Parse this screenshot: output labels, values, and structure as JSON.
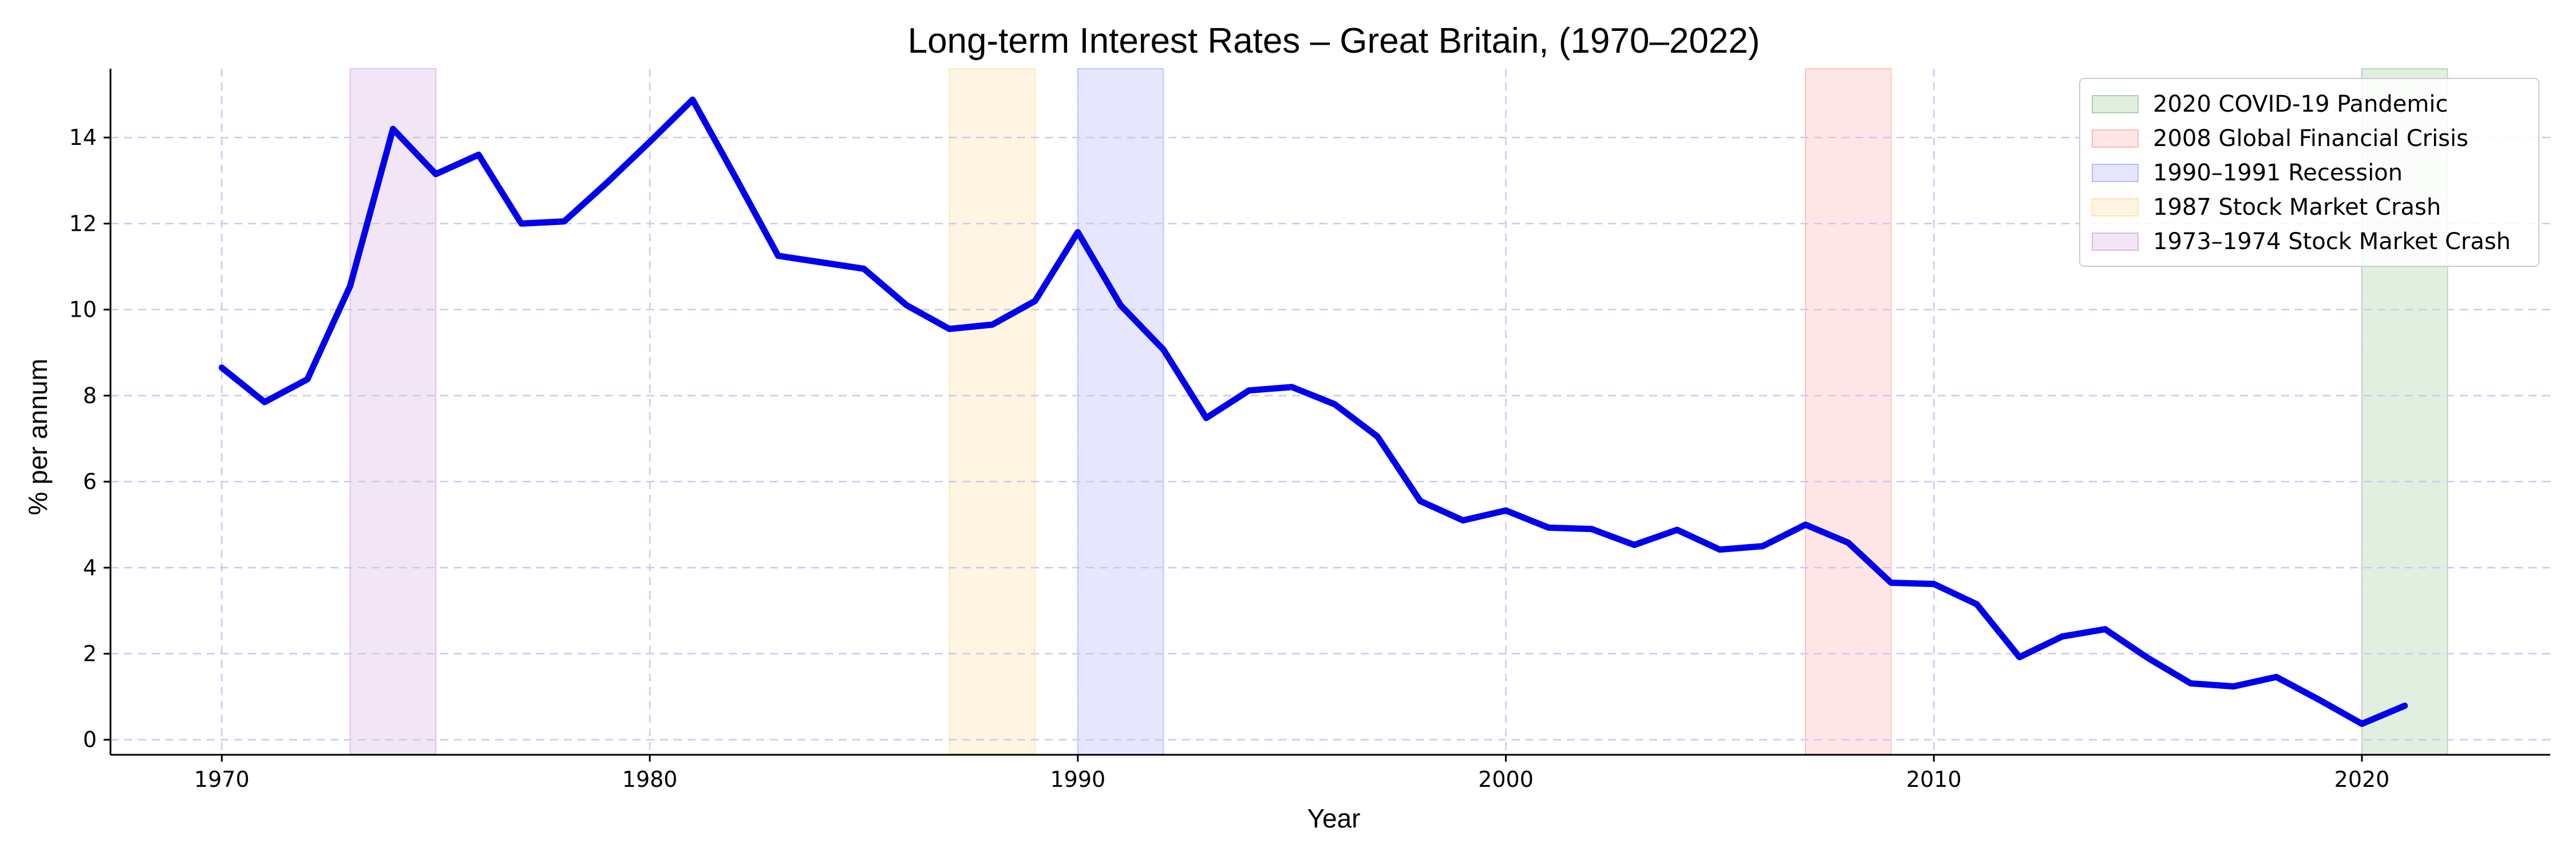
{
  "chart_data": {
    "type": "line",
    "title": "Long-term Interest Rates – Great Britain, (1970–2022)",
    "xlabel": "Year",
    "ylabel": "% per annum",
    "xlim": [
      1967.4,
      2024.4
    ],
    "ylim": [
      -0.35,
      15.6
    ],
    "x_ticks": [
      1970,
      1980,
      1990,
      2000,
      2010,
      2020
    ],
    "y_ticks": [
      0,
      2,
      4,
      6,
      8,
      10,
      12,
      14
    ],
    "grid": true,
    "legend_position": "top-right",
    "series": [
      {
        "color": "#0000ee",
        "points": [
          [
            1970,
            8.65
          ],
          [
            1971,
            7.85
          ],
          [
            1972,
            8.38
          ],
          [
            1973,
            10.55
          ],
          [
            1974,
            14.2
          ],
          [
            1975,
            13.15
          ],
          [
            1976,
            13.6
          ],
          [
            1977,
            12.0
          ],
          [
            1978,
            12.05
          ],
          [
            1979,
            12.95
          ],
          [
            1980,
            13.9
          ],
          [
            1981,
            14.88
          ],
          [
            1982,
            13.08
          ],
          [
            1983,
            11.25
          ],
          [
            1984,
            11.1
          ],
          [
            1985,
            10.95
          ],
          [
            1986,
            10.1
          ],
          [
            1987,
            9.55
          ],
          [
            1988,
            9.65
          ],
          [
            1989,
            10.2
          ],
          [
            1990,
            11.8
          ],
          [
            1991,
            10.1
          ],
          [
            1992,
            9.07
          ],
          [
            1993,
            7.48
          ],
          [
            1994,
            8.12
          ],
          [
            1995,
            8.2
          ],
          [
            1996,
            7.8
          ],
          [
            1997,
            7.05
          ],
          [
            1998,
            5.55
          ],
          [
            1999,
            5.1
          ],
          [
            2000,
            5.33
          ],
          [
            2001,
            4.93
          ],
          [
            2002,
            4.9
          ],
          [
            2003,
            4.53
          ],
          [
            2004,
            4.88
          ],
          [
            2005,
            4.42
          ],
          [
            2006,
            4.5
          ],
          [
            2007,
            5.0
          ],
          [
            2008,
            4.58
          ],
          [
            2009,
            3.65
          ],
          [
            2010,
            3.62
          ],
          [
            2011,
            3.15
          ],
          [
            2012,
            1.92
          ],
          [
            2013,
            2.4
          ],
          [
            2014,
            2.57
          ],
          [
            2015,
            1.9
          ],
          [
            2016,
            1.31
          ],
          [
            2017,
            1.24
          ],
          [
            2018,
            1.46
          ],
          [
            2019,
            0.93
          ],
          [
            2020,
            0.37
          ],
          [
            2021,
            0.79
          ]
        ]
      }
    ],
    "shaded_periods": [
      {
        "label": "2020 COVID-19 Pandemic",
        "start": 2020,
        "end": 2022,
        "color": "#2e8b2e"
      },
      {
        "label": "2008 Global Financial Crisis",
        "start": 2007,
        "end": 2009,
        "color": "#ff4d4d"
      },
      {
        "label": "1990–1991 Recession",
        "start": 1990,
        "end": 1992,
        "color": "#4d4dff"
      },
      {
        "label": "1987 Stock Market Crash",
        "start": 1987,
        "end": 1989,
        "color": "#ffb733"
      },
      {
        "label": "1973–1974 Stock Market Crash",
        "start": 1973,
        "end": 1975,
        "color": "#a64dbf"
      }
    ]
  }
}
